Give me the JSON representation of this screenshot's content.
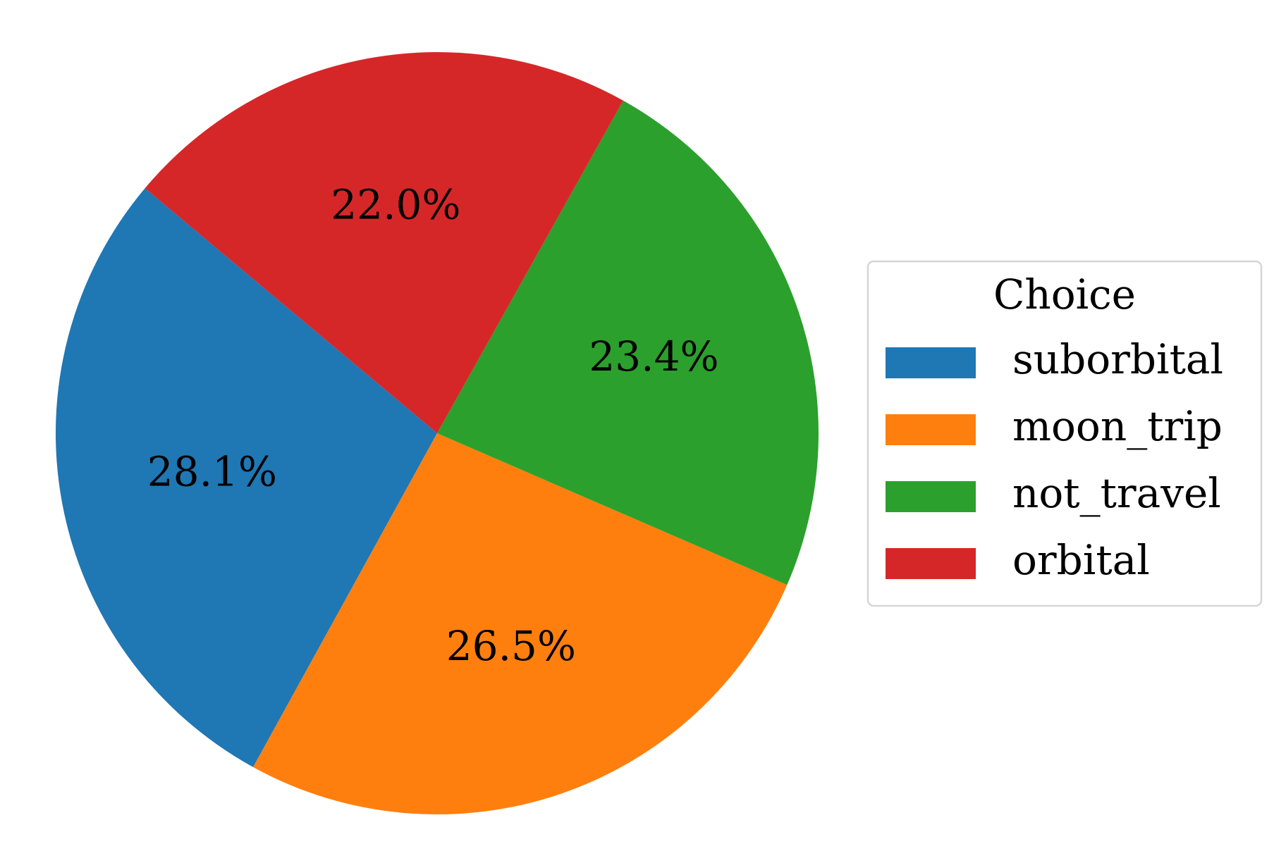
{
  "chart_data": {
    "type": "pie",
    "categories": [
      "suborbital",
      "moon_trip",
      "not_travel",
      "orbital"
    ],
    "values": [
      28.1,
      26.5,
      23.4,
      22.0
    ],
    "value_labels": [
      "28.1%",
      "26.5%",
      "23.4%",
      "22.0%"
    ],
    "colors": [
      "#1f77b4",
      "#ff7f0e",
      "#2ca02c",
      "#d62728"
    ],
    "legend_title": "Choice",
    "legend": "right"
  }
}
